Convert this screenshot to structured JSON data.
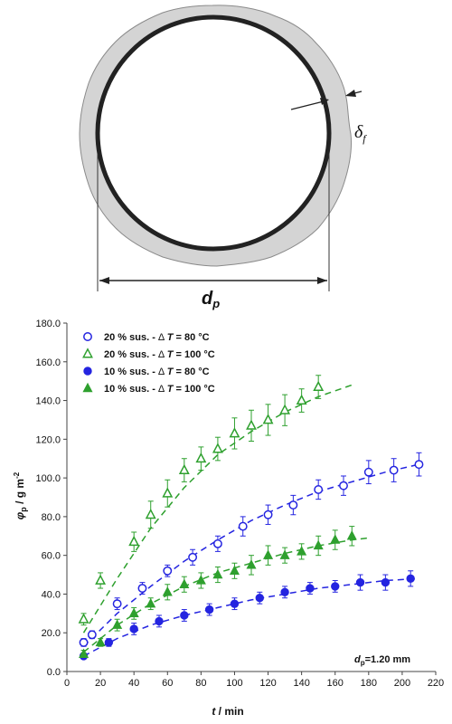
{
  "diagram": {
    "film_label": "δ",
    "film_sub": "f",
    "diameter_label": "d",
    "diameter_sub": "p"
  },
  "chart_data": {
    "type": "scatter",
    "title": "",
    "xlabel_var": "t",
    "xlabel_unit": " / min",
    "ylabel_var": "φ",
    "ylabel_sub": "p",
    "ylabel_unit": " / g m",
    "ylabel_sup": "-2",
    "xlim": [
      0,
      220
    ],
    "ylim": [
      0,
      180
    ],
    "x_ticks": [
      "0",
      "20",
      "40",
      "60",
      "80",
      "100",
      "120",
      "140",
      "160",
      "180",
      "200",
      "220"
    ],
    "y_ticks": [
      "0.0",
      "20.0",
      "40.0",
      "60.0",
      "80.0",
      "100.0",
      "120.0",
      "140.0",
      "160.0",
      "180.0"
    ],
    "annotation": "d",
    "annotation_sub": "p",
    "annotation_value": "=1.20 mm",
    "legend_placement": "top-left",
    "series": [
      {
        "name": "20 % sus. - ΔT = 80 °C",
        "legend_prefix": "20 % sus. - ",
        "legend_dt": "Δ",
        "legend_var": "T",
        "legend_value": " = 80 °C",
        "marker": "circle-open",
        "color": "#2424e0",
        "x": [
          10,
          15,
          30,
          45,
          60,
          75,
          90,
          105,
          120,
          135,
          150,
          165,
          180,
          195,
          210
        ],
        "y": [
          15,
          19,
          35,
          43,
          52,
          59,
          66,
          75,
          81,
          86,
          94,
          96,
          103,
          104,
          107
        ],
        "err": [
          2,
          2,
          3,
          3,
          3,
          4,
          4,
          5,
          5,
          5,
          5,
          5,
          6,
          6,
          6
        ],
        "fit_x": [
          10,
          210
        ],
        "fit_y_points": [
          [
            10,
            13
          ],
          [
            30,
            30
          ],
          [
            50,
            44
          ],
          [
            70,
            57
          ],
          [
            90,
            68
          ],
          [
            110,
            78
          ],
          [
            130,
            86
          ],
          [
            150,
            93
          ],
          [
            170,
            98
          ],
          [
            190,
            103
          ],
          [
            210,
            107
          ]
        ]
      },
      {
        "name": "20 % sus. - ΔT = 100 °C",
        "legend_prefix": "20 % sus. - ",
        "legend_dt": "Δ",
        "legend_var": "T",
        "legend_value": " = 100 °C",
        "marker": "triangle-open",
        "color": "#2ea02e",
        "x": [
          10,
          20,
          40,
          50,
          60,
          70,
          80,
          90,
          100,
          110,
          120,
          130,
          140,
          150
        ],
        "y": [
          27,
          47,
          67,
          81,
          92,
          104,
          110,
          115,
          123,
          127,
          130,
          135,
          140,
          147
        ],
        "err": [
          3,
          4,
          5,
          7,
          7,
          6,
          6,
          6,
          8,
          8,
          8,
          8,
          6,
          6
        ],
        "fit_y_points": [
          [
            10,
            20
          ],
          [
            30,
            48
          ],
          [
            50,
            74
          ],
          [
            70,
            95
          ],
          [
            90,
            112
          ],
          [
            110,
            124
          ],
          [
            130,
            134
          ],
          [
            150,
            142
          ],
          [
            170,
            148
          ]
        ]
      },
      {
        "name": "10 % sus. - ΔT = 80 °C",
        "legend_prefix": "10 % sus. - ",
        "legend_dt": "Δ",
        "legend_var": "T",
        "legend_value": " = 80 °C",
        "marker": "circle-filled",
        "color": "#2424e0",
        "x": [
          10,
          25,
          40,
          55,
          70,
          85,
          100,
          115,
          130,
          145,
          160,
          175,
          190,
          205
        ],
        "y": [
          8,
          15,
          22,
          26,
          29,
          32,
          35,
          38,
          41,
          43,
          44,
          46,
          46,
          48
        ],
        "err": [
          1,
          2,
          3,
          3,
          3,
          3,
          3,
          3,
          3,
          3,
          3,
          4,
          4,
          4
        ],
        "fit_y_points": [
          [
            10,
            8
          ],
          [
            30,
            17
          ],
          [
            50,
            24
          ],
          [
            70,
            29
          ],
          [
            90,
            33
          ],
          [
            110,
            37
          ],
          [
            130,
            40
          ],
          [
            150,
            43
          ],
          [
            170,
            45
          ],
          [
            190,
            47
          ],
          [
            210,
            48
          ]
        ]
      },
      {
        "name": "10 % sus. - ΔT = 100 °C",
        "legend_prefix": "10 % sus. - ",
        "legend_dt": "Δ",
        "legend_var": "T",
        "legend_value": " = 100 °C",
        "marker": "triangle-filled",
        "color": "#2ea02e",
        "x": [
          10,
          20,
          30,
          40,
          50,
          60,
          70,
          80,
          90,
          100,
          110,
          120,
          130,
          140,
          150,
          160,
          170
        ],
        "y": [
          9,
          15,
          24,
          30,
          35,
          41,
          45,
          47,
          50,
          52,
          55,
          60,
          60,
          62,
          65,
          68,
          70
        ],
        "err": [
          2,
          2,
          3,
          3,
          3,
          4,
          4,
          4,
          4,
          4,
          5,
          5,
          4,
          4,
          5,
          5,
          5
        ],
        "fit_y_points": [
          [
            10,
            10
          ],
          [
            30,
            24
          ],
          [
            50,
            35
          ],
          [
            70,
            44
          ],
          [
            90,
            51
          ],
          [
            110,
            56
          ],
          [
            130,
            61
          ],
          [
            150,
            65
          ],
          [
            170,
            68
          ],
          [
            180,
            69
          ]
        ]
      }
    ]
  }
}
